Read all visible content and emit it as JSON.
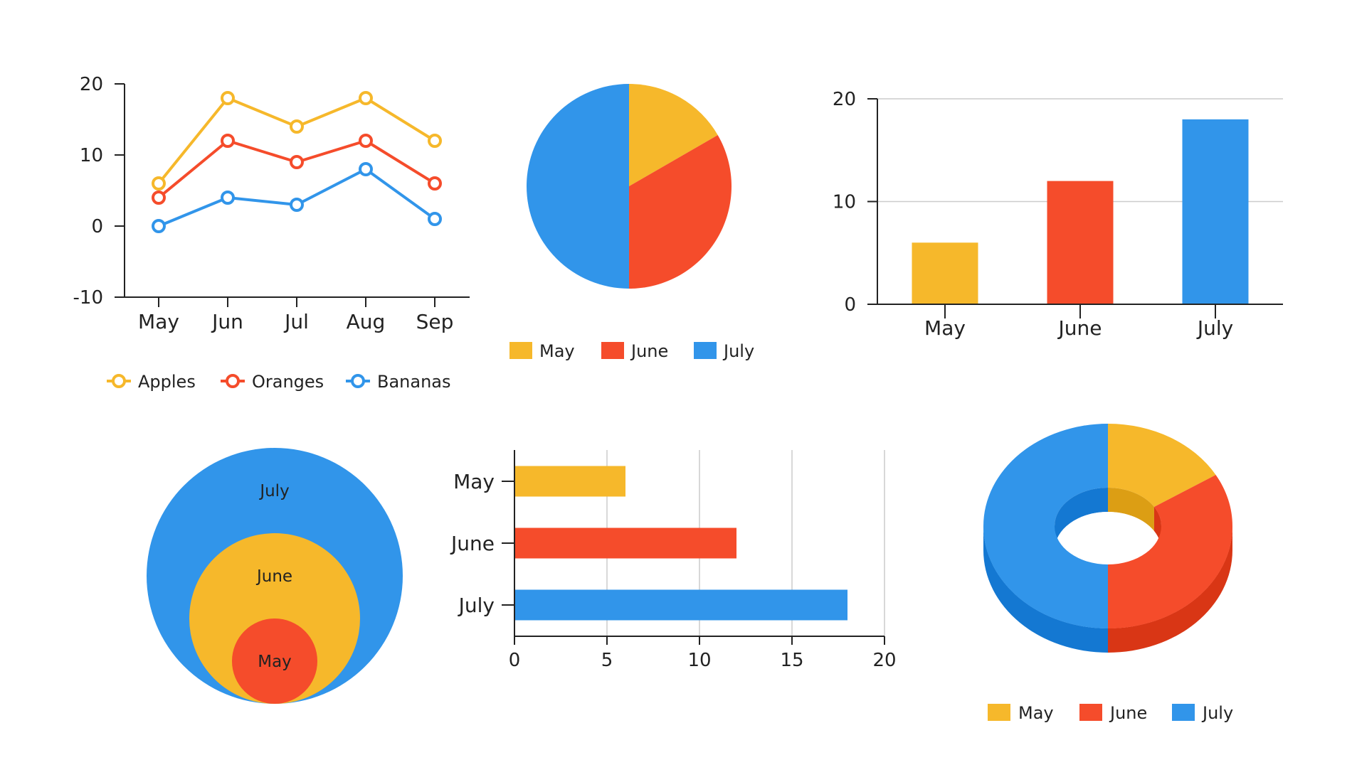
{
  "colors": {
    "yellow": "#f6b82b",
    "red": "#f54c2b",
    "blue": "#3195ea",
    "yellow_side": "#dc9e14",
    "red_side": "#d93615",
    "blue_side": "#1478d2",
    "axis": "#222222",
    "grid": "#cccccc"
  },
  "chart_data": [
    {
      "id": "line",
      "type": "line",
      "x": [
        "May",
        "Jun",
        "Jul",
        "Aug",
        "Sep"
      ],
      "series": [
        {
          "name": "Apples",
          "values": [
            6,
            18,
            14,
            18,
            12
          ],
          "color": "#f6b82b"
        },
        {
          "name": "Oranges",
          "values": [
            4,
            12,
            9,
            12,
            6
          ],
          "color": "#f54c2b"
        },
        {
          "name": "Bananas",
          "values": [
            0,
            4,
            3,
            8,
            1
          ],
          "color": "#3195ea"
        }
      ],
      "ylim": [
        -10,
        20
      ],
      "yticks": [
        -10,
        0,
        10,
        20
      ],
      "legend": "bottom",
      "grid": false
    },
    {
      "id": "pie",
      "type": "pie",
      "categories": [
        "May",
        "June",
        "July"
      ],
      "values": [
        6,
        12,
        18
      ],
      "colors": [
        "#f6b82b",
        "#f54c2b",
        "#3195ea"
      ],
      "legend": "bottom"
    },
    {
      "id": "column",
      "type": "bar",
      "orientation": "vertical",
      "categories": [
        "May",
        "June",
        "July"
      ],
      "values": [
        6,
        12,
        18
      ],
      "colors": [
        "#f6b82b",
        "#f54c2b",
        "#3195ea"
      ],
      "ylim": [
        0,
        20
      ],
      "yticks": [
        0,
        10,
        20
      ],
      "grid": true
    },
    {
      "id": "bubbles",
      "type": "other",
      "style": "nested circles",
      "categories": [
        "July",
        "June",
        "May"
      ],
      "values": [
        18,
        12,
        6
      ],
      "colors": [
        "#3195ea",
        "#f6b82b",
        "#f54c2b"
      ]
    },
    {
      "id": "hbar",
      "type": "bar",
      "orientation": "horizontal",
      "categories": [
        "May",
        "June",
        "July"
      ],
      "values": [
        6,
        12,
        18
      ],
      "colors": [
        "#f6b82b",
        "#f54c2b",
        "#3195ea"
      ],
      "xlim": [
        0,
        20
      ],
      "xticks": [
        0,
        5,
        10,
        15,
        20
      ],
      "grid": true
    },
    {
      "id": "donut",
      "type": "pie",
      "style": "3d donut",
      "categories": [
        "May",
        "June",
        "July"
      ],
      "values": [
        6,
        12,
        18
      ],
      "colors": [
        "#f6b82b",
        "#f54c2b",
        "#3195ea"
      ],
      "legend": "bottom"
    }
  ]
}
